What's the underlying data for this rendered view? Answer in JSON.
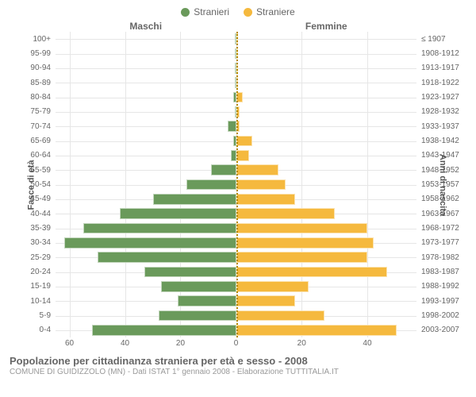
{
  "chart": {
    "type": "population-pyramid",
    "legend": [
      {
        "label": "Stranieri",
        "color": "#6a9a5b"
      },
      {
        "label": "Straniere",
        "color": "#f5b93e"
      }
    ],
    "column_headers": {
      "left": "Maschi",
      "right": "Femmine"
    },
    "y_title_left": "Fasce di età",
    "y_title_right": "Anni di nascita",
    "colors": {
      "male": "#6a9a5b",
      "female": "#f5b93e",
      "grid": "#e6e6e6",
      "center_line": "#b58900",
      "background": "#ffffff",
      "text": "#666666"
    },
    "font_sizes": {
      "legend": 12,
      "tick": 10,
      "header": 12,
      "title": 13,
      "subtitle": 10
    },
    "x_domain": {
      "left_max": 65,
      "right_max": 55
    },
    "x_ticks_left": [
      60,
      40,
      20,
      0
    ],
    "x_ticks_right": [
      0,
      20,
      40
    ],
    "rows": [
      {
        "age": "100+",
        "birth": "≤ 1907",
        "m": 0,
        "f": 0
      },
      {
        "age": "95-99",
        "birth": "1908-1912",
        "m": 0,
        "f": 0
      },
      {
        "age": "90-94",
        "birth": "1913-1917",
        "m": 0,
        "f": 0
      },
      {
        "age": "85-89",
        "birth": "1918-1922",
        "m": 0,
        "f": 0
      },
      {
        "age": "80-84",
        "birth": "1923-1927",
        "m": 1,
        "f": 2
      },
      {
        "age": "75-79",
        "birth": "1928-1932",
        "m": 0,
        "f": 1
      },
      {
        "age": "70-74",
        "birth": "1933-1937",
        "m": 3,
        "f": 1
      },
      {
        "age": "65-69",
        "birth": "1938-1942",
        "m": 1,
        "f": 5
      },
      {
        "age": "60-64",
        "birth": "1943-1947",
        "m": 2,
        "f": 4
      },
      {
        "age": "55-59",
        "birth": "1948-1952",
        "m": 9,
        "f": 13
      },
      {
        "age": "50-54",
        "birth": "1953-1957",
        "m": 18,
        "f": 15
      },
      {
        "age": "45-49",
        "birth": "1958-1962",
        "m": 30,
        "f": 18
      },
      {
        "age": "40-44",
        "birth": "1963-1967",
        "m": 42,
        "f": 30
      },
      {
        "age": "35-39",
        "birth": "1968-1972",
        "m": 55,
        "f": 40
      },
      {
        "age": "30-34",
        "birth": "1973-1977",
        "m": 62,
        "f": 42
      },
      {
        "age": "25-29",
        "birth": "1978-1982",
        "m": 50,
        "f": 40
      },
      {
        "age": "20-24",
        "birth": "1983-1987",
        "m": 33,
        "f": 46
      },
      {
        "age": "15-19",
        "birth": "1988-1992",
        "m": 27,
        "f": 22
      },
      {
        "age": "10-14",
        "birth": "1993-1997",
        "m": 21,
        "f": 18
      },
      {
        "age": "5-9",
        "birth": "1998-2002",
        "m": 28,
        "f": 27
      },
      {
        "age": "0-4",
        "birth": "2003-2007",
        "m": 52,
        "f": 49
      }
    ],
    "title": "Popolazione per cittadinanza straniera per età e sesso - 2008",
    "subtitle": "COMUNE DI GUIDIZZOLO (MN) - Dati ISTAT 1° gennaio 2008 - Elaborazione TUTTITALIA.IT"
  }
}
